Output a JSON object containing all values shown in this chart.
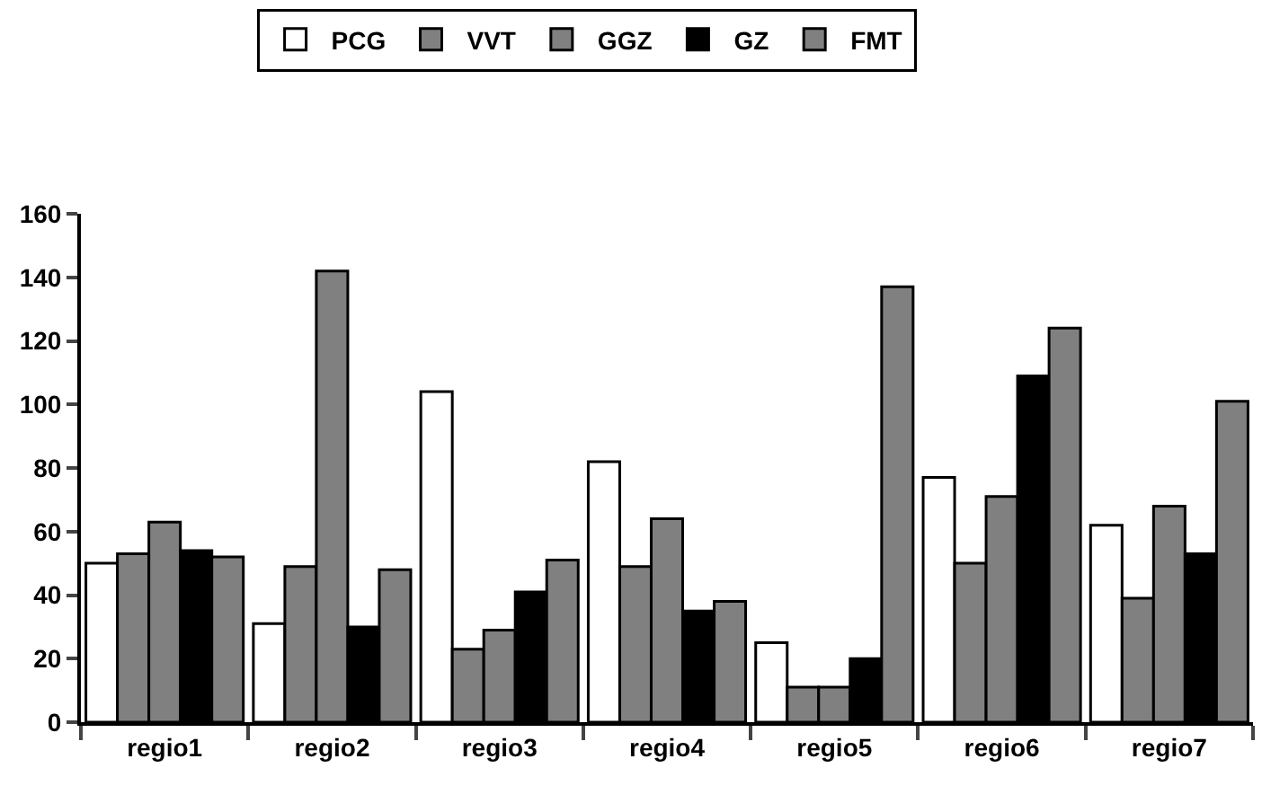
{
  "chart_data": {
    "type": "bar",
    "categories": [
      "regio1",
      "regio2",
      "regio3",
      "regio4",
      "regio5",
      "regio6",
      "regio7"
    ],
    "series": [
      {
        "name": "PCG",
        "color": "#ffffff",
        "values": [
          50,
          31,
          104,
          82,
          25,
          77,
          62
        ]
      },
      {
        "name": "VVT",
        "color": "#808080",
        "values": [
          53,
          49,
          23,
          49,
          11,
          50,
          39
        ]
      },
      {
        "name": "GGZ",
        "color": "#808080",
        "values": [
          63,
          142,
          29,
          64,
          11,
          71,
          68
        ]
      },
      {
        "name": "GZ",
        "color": "#000000",
        "values": [
          54,
          30,
          41,
          35,
          20,
          109,
          53
        ]
      },
      {
        "name": "FMT",
        "color": "#808080",
        "values": [
          52,
          48,
          51,
          38,
          137,
          124,
          101
        ]
      }
    ],
    "ylim": [
      0,
      160
    ],
    "yticks": [
      0,
      20,
      40,
      60,
      80,
      100,
      120,
      140,
      160
    ],
    "grid": false,
    "legend": "top"
  }
}
